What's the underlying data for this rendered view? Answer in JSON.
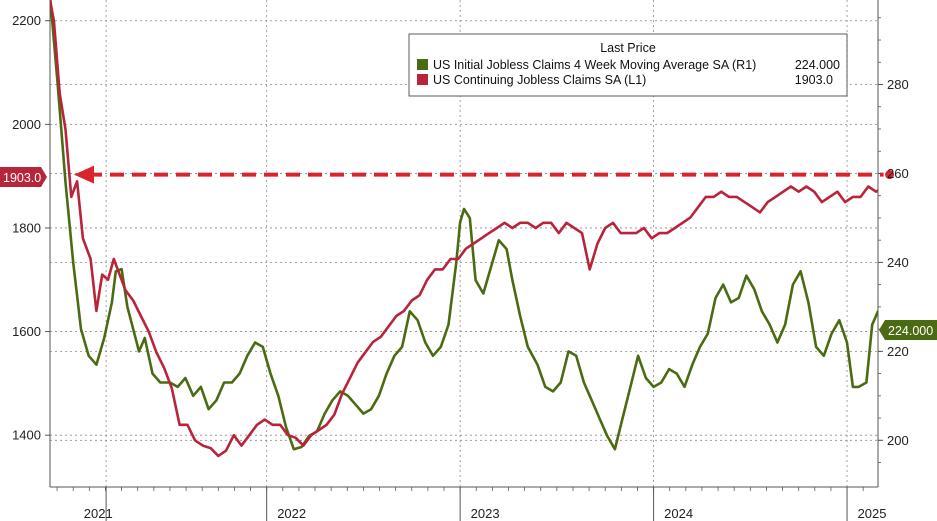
{
  "chart_data": {
    "type": "line",
    "legend": {
      "header": "Last Price",
      "placement": "top-right"
    },
    "grid": true,
    "x_axis": {
      "range": [
        2020.88,
        2025.16
      ],
      "tick_labels": [
        {
          "label": "2021",
          "x": 2021.0
        },
        {
          "label": "2022",
          "x": 2022.0
        },
        {
          "label": "2023",
          "x": 2023.0
        },
        {
          "label": "2024",
          "x": 2024.0
        },
        {
          "label": "2025",
          "x": 2025.0
        }
      ],
      "year_boundaries": [
        2021.17,
        2022.0,
        2023.0,
        2024.0,
        2025.0
      ]
    },
    "left_axis": {
      "range": [
        1300,
        2240
      ],
      "ticks": [
        1400,
        1600,
        1800,
        2000,
        2200
      ]
    },
    "right_axis": {
      "range": [
        189.5,
        299
      ],
      "ticks": [
        200,
        220,
        240,
        260,
        280
      ]
    },
    "series": [
      {
        "name": "US Initial Jobless Claims 4 Week Moving Average SA",
        "axis_tag": "(R1)",
        "last_value": "224.000",
        "color": "#4b6b12",
        "axis": "right",
        "points": [
          [
            2020.88,
            300
          ],
          [
            2020.92,
            280
          ],
          [
            2020.96,
            258
          ],
          [
            2021.0,
            240
          ],
          [
            2021.04,
            225
          ],
          [
            2021.08,
            219
          ],
          [
            2021.12,
            217
          ],
          [
            2021.16,
            223
          ],
          [
            2021.2,
            231
          ],
          [
            2021.22,
            238
          ],
          [
            2021.25,
            238.5
          ],
          [
            2021.28,
            230
          ],
          [
            2021.31,
            225
          ],
          [
            2021.34,
            220
          ],
          [
            2021.37,
            223
          ],
          [
            2021.41,
            215
          ],
          [
            2021.45,
            213
          ],
          [
            2021.5,
            213
          ],
          [
            2021.54,
            212
          ],
          [
            2021.58,
            214
          ],
          [
            2021.62,
            210
          ],
          [
            2021.66,
            212
          ],
          [
            2021.7,
            207
          ],
          [
            2021.74,
            209
          ],
          [
            2021.78,
            213
          ],
          [
            2021.82,
            213
          ],
          [
            2021.86,
            215
          ],
          [
            2021.9,
            219
          ],
          [
            2021.94,
            222
          ],
          [
            2021.98,
            221
          ],
          [
            2022.02,
            215
          ],
          [
            2022.06,
            210
          ],
          [
            2022.1,
            203
          ],
          [
            2022.14,
            198
          ],
          [
            2022.18,
            198.5
          ],
          [
            2022.22,
            201
          ],
          [
            2022.26,
            202
          ],
          [
            2022.3,
            206
          ],
          [
            2022.34,
            209
          ],
          [
            2022.38,
            211
          ],
          [
            2022.42,
            210
          ],
          [
            2022.46,
            208
          ],
          [
            2022.5,
            206
          ],
          [
            2022.54,
            207
          ],
          [
            2022.58,
            210
          ],
          [
            2022.62,
            215
          ],
          [
            2022.66,
            219
          ],
          [
            2022.7,
            221
          ],
          [
            2022.74,
            229
          ],
          [
            2022.78,
            227
          ],
          [
            2022.82,
            222
          ],
          [
            2022.86,
            219
          ],
          [
            2022.9,
            221
          ],
          [
            2022.94,
            226
          ],
          [
            2022.98,
            240
          ],
          [
            2023.0,
            249
          ],
          [
            2023.02,
            252
          ],
          [
            2023.05,
            250
          ],
          [
            2023.08,
            236
          ],
          [
            2023.12,
            233
          ],
          [
            2023.16,
            239
          ],
          [
            2023.2,
            245
          ],
          [
            2023.24,
            243
          ],
          [
            2023.27,
            236
          ],
          [
            2023.31,
            228
          ],
          [
            2023.35,
            221
          ],
          [
            2023.4,
            217
          ],
          [
            2023.44,
            212
          ],
          [
            2023.48,
            211
          ],
          [
            2023.52,
            213
          ],
          [
            2023.56,
            220
          ],
          [
            2023.6,
            219
          ],
          [
            2023.64,
            213
          ],
          [
            2023.68,
            209
          ],
          [
            2023.72,
            205
          ],
          [
            2023.76,
            201
          ],
          [
            2023.8,
            198
          ],
          [
            2023.84,
            205
          ],
          [
            2023.88,
            212
          ],
          [
            2023.92,
            219
          ],
          [
            2023.96,
            214
          ],
          [
            2024.0,
            212
          ],
          [
            2024.04,
            213
          ],
          [
            2024.08,
            216
          ],
          [
            2024.12,
            215
          ],
          [
            2024.16,
            212
          ],
          [
            2024.2,
            217
          ],
          [
            2024.24,
            221
          ],
          [
            2024.28,
            224
          ],
          [
            2024.32,
            232
          ],
          [
            2024.36,
            235
          ],
          [
            2024.4,
            231
          ],
          [
            2024.44,
            232
          ],
          [
            2024.48,
            237
          ],
          [
            2024.52,
            234
          ],
          [
            2024.56,
            229
          ],
          [
            2024.6,
            226
          ],
          [
            2024.64,
            222
          ],
          [
            2024.68,
            226
          ],
          [
            2024.72,
            235
          ],
          [
            2024.76,
            238
          ],
          [
            2024.8,
            231
          ],
          [
            2024.84,
            221
          ],
          [
            2024.88,
            219
          ],
          [
            2024.92,
            224
          ],
          [
            2024.96,
            227
          ],
          [
            2025.0,
            222
          ],
          [
            2025.03,
            212
          ],
          [
            2025.06,
            212
          ],
          [
            2025.1,
            213
          ],
          [
            2025.13,
            226
          ],
          [
            2025.16,
            229
          ],
          [
            2025.21,
            229
          ],
          [
            2025.24,
            224
          ]
        ]
      },
      {
        "name": "US Continuing Jobless Claims SA",
        "axis_tag": "(L1)",
        "last_value": "1903.0",
        "color": "#b8243a",
        "axis": "left",
        "points": [
          [
            2020.88,
            2240
          ],
          [
            2020.9,
            2200
          ],
          [
            2020.93,
            2060
          ],
          [
            2020.96,
            1990
          ],
          [
            2020.99,
            1860
          ],
          [
            2021.02,
            1890
          ],
          [
            2021.05,
            1780
          ],
          [
            2021.09,
            1740
          ],
          [
            2021.12,
            1640
          ],
          [
            2021.15,
            1710
          ],
          [
            2021.18,
            1700
          ],
          [
            2021.21,
            1740
          ],
          [
            2021.24,
            1710
          ],
          [
            2021.27,
            1680
          ],
          [
            2021.31,
            1660
          ],
          [
            2021.35,
            1630
          ],
          [
            2021.39,
            1600
          ],
          [
            2021.43,
            1560
          ],
          [
            2021.47,
            1530
          ],
          [
            2021.51,
            1490
          ],
          [
            2021.55,
            1420
          ],
          [
            2021.59,
            1420
          ],
          [
            2021.63,
            1390
          ],
          [
            2021.67,
            1380
          ],
          [
            2021.71,
            1375
          ],
          [
            2021.75,
            1360
          ],
          [
            2021.79,
            1370
          ],
          [
            2021.83,
            1400
          ],
          [
            2021.87,
            1380
          ],
          [
            2021.91,
            1400
          ],
          [
            2021.95,
            1420
          ],
          [
            2021.99,
            1430
          ],
          [
            2022.03,
            1420
          ],
          [
            2022.07,
            1420
          ],
          [
            2022.11,
            1400
          ],
          [
            2022.15,
            1395
          ],
          [
            2022.19,
            1380
          ],
          [
            2022.23,
            1400
          ],
          [
            2022.27,
            1410
          ],
          [
            2022.31,
            1420
          ],
          [
            2022.35,
            1440
          ],
          [
            2022.39,
            1480
          ],
          [
            2022.43,
            1510
          ],
          [
            2022.47,
            1540
          ],
          [
            2022.51,
            1560
          ],
          [
            2022.55,
            1580
          ],
          [
            2022.59,
            1590
          ],
          [
            2022.63,
            1610
          ],
          [
            2022.67,
            1630
          ],
          [
            2022.71,
            1640
          ],
          [
            2022.75,
            1660
          ],
          [
            2022.79,
            1670
          ],
          [
            2022.83,
            1700
          ],
          [
            2022.87,
            1720
          ],
          [
            2022.91,
            1720
          ],
          [
            2022.95,
            1740
          ],
          [
            2022.99,
            1740
          ],
          [
            2023.03,
            1760
          ],
          [
            2023.07,
            1770
          ],
          [
            2023.11,
            1780
          ],
          [
            2023.15,
            1790
          ],
          [
            2023.19,
            1800
          ],
          [
            2023.23,
            1810
          ],
          [
            2023.27,
            1800
          ],
          [
            2023.31,
            1810
          ],
          [
            2023.35,
            1810
          ],
          [
            2023.39,
            1800
          ],
          [
            2023.43,
            1810
          ],
          [
            2023.47,
            1810
          ],
          [
            2023.51,
            1790
          ],
          [
            2023.55,
            1810
          ],
          [
            2023.59,
            1800
          ],
          [
            2023.63,
            1790
          ],
          [
            2023.67,
            1720
          ],
          [
            2023.71,
            1770
          ],
          [
            2023.75,
            1800
          ],
          [
            2023.79,
            1810
          ],
          [
            2023.83,
            1790
          ],
          [
            2023.87,
            1790
          ],
          [
            2023.91,
            1790
          ],
          [
            2023.95,
            1800
          ],
          [
            2023.99,
            1780
          ],
          [
            2024.03,
            1790
          ],
          [
            2024.07,
            1790
          ],
          [
            2024.11,
            1800
          ],
          [
            2024.15,
            1810
          ],
          [
            2024.19,
            1820
          ],
          [
            2024.23,
            1840
          ],
          [
            2024.27,
            1860
          ],
          [
            2024.31,
            1860
          ],
          [
            2024.35,
            1870
          ],
          [
            2024.39,
            1860
          ],
          [
            2024.43,
            1860
          ],
          [
            2024.47,
            1850
          ],
          [
            2024.51,
            1840
          ],
          [
            2024.55,
            1830
          ],
          [
            2024.59,
            1850
          ],
          [
            2024.63,
            1860
          ],
          [
            2024.67,
            1870
          ],
          [
            2024.71,
            1880
          ],
          [
            2024.75,
            1870
          ],
          [
            2024.79,
            1880
          ],
          [
            2024.83,
            1870
          ],
          [
            2024.87,
            1850
          ],
          [
            2024.91,
            1860
          ],
          [
            2024.95,
            1870
          ],
          [
            2024.99,
            1850
          ],
          [
            2025.03,
            1860
          ],
          [
            2025.07,
            1860
          ],
          [
            2025.11,
            1880
          ],
          [
            2025.15,
            1870
          ],
          [
            2025.19,
            1880
          ],
          [
            2025.22,
            1903
          ]
        ]
      }
    ],
    "reference_line": {
      "axis": "left",
      "value": 1903,
      "color": "#d9242e",
      "style": "dashed",
      "arrow": "left"
    },
    "value_tags": {
      "left": {
        "label": "1903.0",
        "color": "#b8243a"
      },
      "right": {
        "label": "224.000",
        "color": "#4b6b12"
      }
    }
  }
}
